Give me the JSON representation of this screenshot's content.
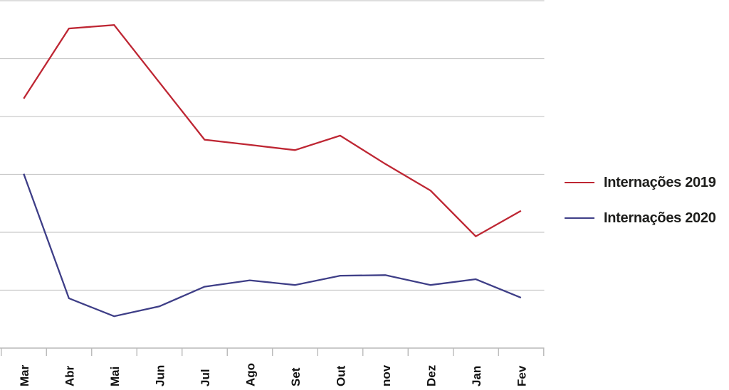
{
  "chart_data": {
    "type": "line",
    "title": "",
    "xlabel": "",
    "ylabel": "",
    "categories": [
      "Mar",
      "Abr",
      "Mai",
      "Jun",
      "Jul",
      "Ago",
      "Set",
      "Out",
      "nov",
      "Dez",
      "Jan",
      "Fev"
    ],
    "series": [
      {
        "name": "Internações 2019",
        "color": "#be2633",
        "values": [
          4.31,
          5.52,
          5.58,
          4.59,
          3.6,
          3.51,
          3.42,
          3.67,
          3.18,
          2.72,
          1.93,
          2.37
        ]
      },
      {
        "name": "Internações 2020",
        "color": "#3e3e87",
        "values": [
          3.01,
          0.86,
          0.55,
          0.72,
          1.06,
          1.17,
          1.09,
          1.25,
          1.26,
          1.09,
          1.19,
          0.87
        ]
      }
    ],
    "y_axis": {
      "tick_labels_visible": false,
      "unit": "gridline-intervals above baseline (no numeric labels visible in image)",
      "ylim": [
        0,
        6
      ],
      "gridline_count": 7
    },
    "x_axis": {
      "tick_marks": "between categories",
      "label_rotation_degrees": 90
    },
    "grid": "horizontal only",
    "legend_position": "right"
  },
  "colors": {
    "background": "#ffffff",
    "gridline": "#c9c9c9",
    "axis": "#b9b9b9",
    "axis_label_text": "#121212",
    "legend_text": "#1d1d1b"
  }
}
